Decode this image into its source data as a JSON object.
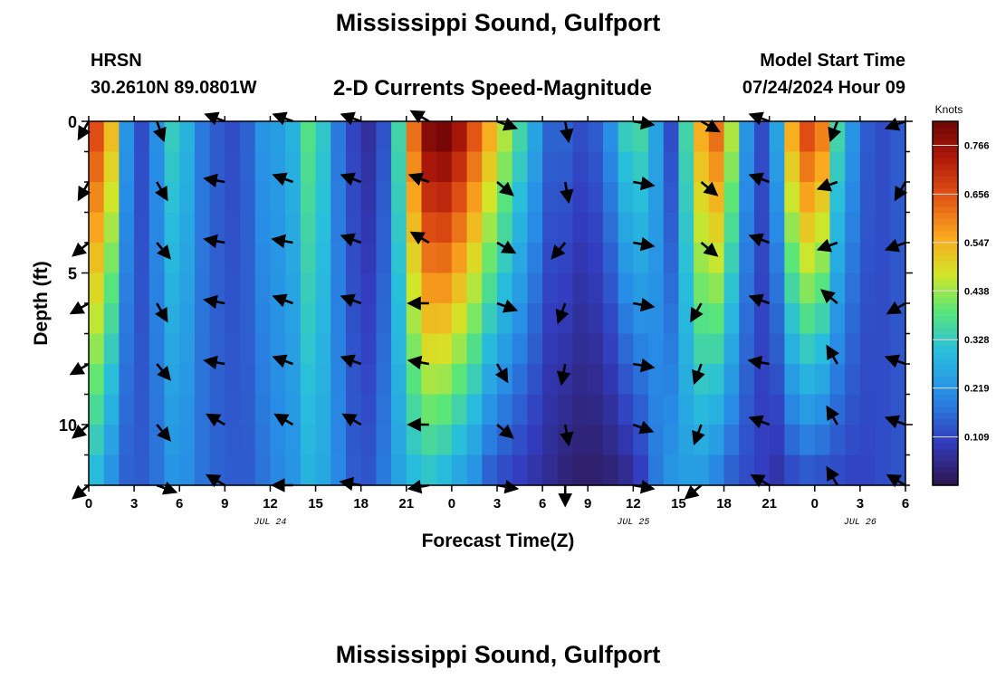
{
  "header": {
    "title": "Mississippi Sound, Gulfport",
    "station": "HRSN",
    "coords": "30.2610N  89.0801W",
    "subtitle": "2-D Currents Speed-Magnitude",
    "model_start_label": "Model Start Time",
    "model_start_value": "07/24/2024 Hour 09"
  },
  "footer": {
    "title": "Mississippi Sound, Gulfport"
  },
  "chart_data": {
    "type": "heatmap",
    "xlabel": "Forecast Time(Z)",
    "ylabel": "Depth (ft)",
    "x_range_hours": [
      0,
      54
    ],
    "y_range_ft": [
      0,
      12
    ],
    "x_tick_labels": [
      "0",
      "3",
      "6",
      "9",
      "12",
      "15",
      "18",
      "21",
      "0",
      "3",
      "6",
      "9",
      "12",
      "15",
      "18",
      "21",
      "0",
      "3",
      "6"
    ],
    "y_ticks": [
      0,
      5,
      10
    ],
    "y_tick_labels": [
      "0",
      "5",
      "10"
    ],
    "date_labels": [
      {
        "label": "JUL 24",
        "hour": 12
      },
      {
        "label": "JUL 25",
        "hour": 36
      },
      {
        "label": "JUL 26",
        "hour": 51
      }
    ],
    "colorbar": {
      "label": "Knots",
      "min": 0.0,
      "max": 0.82,
      "tick_values": [
        0.109,
        0.219,
        0.328,
        0.438,
        0.547,
        0.656,
        0.766
      ],
      "tick_labels": [
        "0.109",
        "0.219",
        "0.328",
        "0.438",
        "0.547",
        "0.656",
        "0.766"
      ]
    },
    "time_hours": [
      0,
      1,
      2,
      3,
      4,
      5,
      6,
      7,
      8,
      9,
      10,
      11,
      12,
      13,
      14,
      15,
      16,
      17,
      18,
      19,
      20,
      21,
      22,
      23,
      24,
      25,
      26,
      27,
      28,
      29,
      30,
      31,
      32,
      33,
      34,
      35,
      36,
      37,
      38,
      39,
      40,
      41,
      42,
      43,
      44,
      45,
      46,
      47,
      48,
      49,
      50,
      51,
      52,
      53
    ],
    "depths_ft": [
      0,
      1,
      2,
      3,
      4,
      5,
      6,
      7,
      8,
      9,
      10,
      11
    ],
    "surface_speed_knots": [
      0.66,
      0.53,
      0.22,
      0.12,
      0.21,
      0.33,
      0.28,
      0.18,
      0.14,
      0.12,
      0.15,
      0.22,
      0.24,
      0.28,
      0.38,
      0.32,
      0.18,
      0.11,
      0.07,
      0.13,
      0.35,
      0.62,
      0.79,
      0.81,
      0.75,
      0.65,
      0.55,
      0.45,
      0.35,
      0.25,
      0.15,
      0.15,
      0.12,
      0.14,
      0.21,
      0.33,
      0.35,
      0.25,
      0.12,
      0.35,
      0.55,
      0.62,
      0.45,
      0.22,
      0.12,
      0.25,
      0.55,
      0.66,
      0.6,
      0.35,
      0.22,
      0.14,
      0.12,
      0.14
    ],
    "bottom_speed_knots": [
      0.3,
      0.22,
      0.15,
      0.14,
      0.17,
      0.22,
      0.21,
      0.17,
      0.15,
      0.14,
      0.14,
      0.17,
      0.2,
      0.22,
      0.28,
      0.26,
      0.2,
      0.14,
      0.13,
      0.18,
      0.25,
      0.3,
      0.32,
      0.3,
      0.26,
      0.22,
      0.15,
      0.12,
      0.1,
      0.08,
      0.06,
      0.04,
      0.03,
      0.03,
      0.04,
      0.06,
      0.1,
      0.18,
      0.22,
      0.24,
      0.24,
      0.2,
      0.15,
      0.12,
      0.1,
      0.08,
      0.12,
      0.14,
      0.13,
      0.12,
      0.11,
      0.11,
      0.12,
      0.13
    ],
    "vector_times_hours": [
      0,
      4.5,
      9,
      13.5,
      18,
      22.5,
      27,
      31.5,
      36,
      40.5,
      45,
      49.5,
      54
    ],
    "vector_depths_ft": [
      0,
      2,
      4,
      6,
      8,
      10,
      12
    ],
    "vector_direction_deg": [
      [
        210,
        160,
        290,
        290,
        290,
        300,
        110,
        170,
        100,
        120,
        290,
        200,
        250
      ],
      [
        210,
        150,
        280,
        290,
        290,
        290,
        130,
        170,
        100,
        130,
        290,
        250,
        210
      ],
      [
        230,
        140,
        280,
        280,
        290,
        300,
        120,
        220,
        100,
        130,
        290,
        250,
        250
      ],
      [
        240,
        150,
        280,
        290,
        290,
        270,
        110,
        200,
        100,
        210,
        290,
        310,
        240
      ],
      [
        240,
        140,
        280,
        290,
        290,
        280,
        150,
        190,
        100,
        200,
        280,
        330,
        290
      ],
      [
        230,
        140,
        300,
        300,
        300,
        270,
        130,
        170,
        110,
        200,
        290,
        330,
        290
      ],
      [
        230,
        110,
        300,
        270,
        280,
        260,
        100,
        180,
        100,
        230,
        300,
        330,
        300
      ]
    ]
  }
}
